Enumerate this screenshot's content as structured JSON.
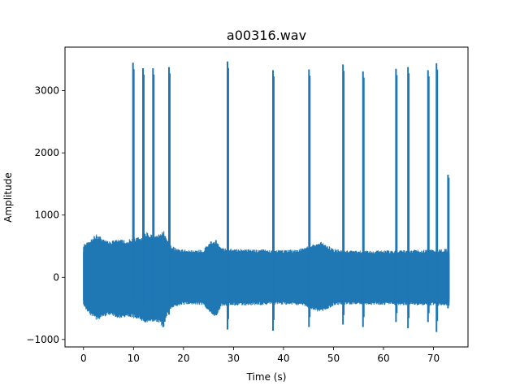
{
  "chart_data": {
    "type": "line",
    "title": "a00316.wav",
    "xlabel": "Time (s)",
    "ylabel": "Amplitude",
    "xlim": [
      -3.7,
      76.9
    ],
    "ylim": [
      -1120,
      3700
    ],
    "xticks": [
      0,
      10,
      20,
      30,
      40,
      50,
      60,
      70
    ],
    "xtick_labels": [
      "0",
      "10",
      "20",
      "30",
      "40",
      "50",
      "60",
      "70"
    ],
    "yticks": [
      -1000,
      0,
      1000,
      2000,
      3000
    ],
    "ytick_labels": [
      "−1000",
      "0",
      "1000",
      "2000",
      "3000"
    ],
    "grid": false,
    "legend": "none",
    "series_color": "#1f77b4",
    "signal": {
      "time_start": 0,
      "time_end": 73.2,
      "envelope": {
        "x": [
          0,
          0.8,
          1.5,
          2.5,
          3.5,
          4.5,
          5.5,
          6.5,
          7.5,
          8.5,
          9.5,
          10.5,
          11.5,
          12.5,
          13.5,
          14.5,
          15.5,
          16.0,
          16.5,
          17.5,
          18.5,
          20,
          22,
          24,
          25.5,
          26.5,
          27.5,
          30,
          35,
          40,
          43,
          44.5,
          46,
          47.5,
          48.5,
          50,
          52,
          55,
          60,
          65,
          70,
          73.2
        ],
        "upper": [
          520,
          560,
          620,
          680,
          640,
          600,
          560,
          620,
          600,
          580,
          620,
          640,
          640,
          720,
          680,
          660,
          700,
          760,
          620,
          500,
          460,
          440,
          430,
          440,
          580,
          600,
          460,
          450,
          440,
          430,
          440,
          480,
          520,
          560,
          520,
          450,
          430,
          420,
          430,
          430,
          440,
          450
        ],
        "lower": [
          -470,
          -540,
          -620,
          -680,
          -650,
          -620,
          -600,
          -640,
          -650,
          -640,
          -640,
          -660,
          -680,
          -720,
          -700,
          -700,
          -760,
          -820,
          -650,
          -500,
          -460,
          -430,
          -430,
          -440,
          -580,
          -640,
          -460,
          -450,
          -440,
          -430,
          -440,
          -470,
          -520,
          -560,
          -520,
          -450,
          -430,
          -430,
          -440,
          -440,
          -450,
          -450
        ]
      },
      "spikes": [
        {
          "t": 9.9,
          "peak": 3450,
          "trough": -420
        },
        {
          "t": 11.9,
          "peak": 3360,
          "trough": -620
        },
        {
          "t": 13.9,
          "peak": 3360,
          "trough": -700
        },
        {
          "t": 17.1,
          "peak": 3380,
          "trough": -600
        },
        {
          "t": 28.8,
          "peak": 3470,
          "trough": -840
        },
        {
          "t": 37.9,
          "peak": 3330,
          "trough": -860
        },
        {
          "t": 45.1,
          "peak": 3340,
          "trough": -800
        },
        {
          "t": 51.9,
          "peak": 3420,
          "trough": -760
        },
        {
          "t": 55.9,
          "peak": 3310,
          "trough": -800
        },
        {
          "t": 62.5,
          "peak": 3350,
          "trough": -720
        },
        {
          "t": 64.9,
          "peak": 3380,
          "trough": -820
        },
        {
          "t": 68.9,
          "peak": 3330,
          "trough": -720
        },
        {
          "t": 70.6,
          "peak": 3440,
          "trough": -880
        },
        {
          "t": 72.9,
          "peak": 1650,
          "trough": -500
        }
      ]
    }
  }
}
